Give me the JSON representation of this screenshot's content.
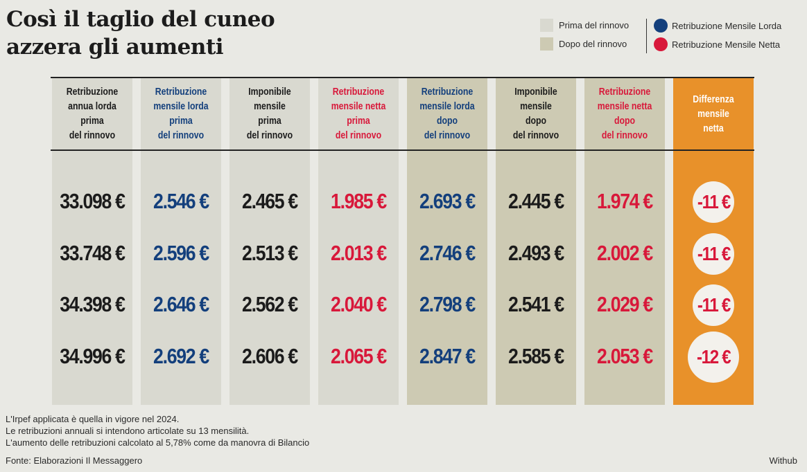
{
  "title": [
    "Così il taglio del cuneo",
    "azzera gli aumenti"
  ],
  "legend": {
    "prima": "Prima del rinnovo",
    "dopo": "Dopo del rinnovo",
    "lorda": "Retribuzione Mensile Lorda",
    "netta": "Retribuzione Mensile Netta",
    "colors": {
      "prima": "#d9d9d0",
      "dopo": "#cdcab3",
      "lorda": "#133f7c",
      "netta": "#d8183a",
      "diff": "#e8912a"
    }
  },
  "columns": [
    {
      "header": [
        "Retribuzione",
        "annua lorda",
        "prima",
        "del rinnovo"
      ],
      "values": [
        "33.098 €",
        "33.748 €",
        "34.398 €",
        "34.996 €"
      ]
    },
    {
      "header": [
        "Retribuzione",
        "mensile lorda",
        "prima",
        "del rinnovo"
      ],
      "values": [
        "2.546 €",
        "2.596 €",
        "2.646 €",
        "2.692 €"
      ]
    },
    {
      "header": [
        "Imponibile",
        "mensile",
        "prima",
        "del rinnovo"
      ],
      "values": [
        "2.465 €",
        "2.513 €",
        "2.562 €",
        "2.606 €"
      ]
    },
    {
      "header": [
        "Retribuzione",
        "mensile netta",
        "prima",
        "del rinnovo"
      ],
      "values": [
        "1.985 €",
        "2.013 €",
        "2.040 €",
        "2.065 €"
      ]
    },
    {
      "header": [
        "Retribuzione",
        "mensile lorda",
        "dopo",
        "del rinnovo"
      ],
      "values": [
        "2.693 €",
        "2.746 €",
        "2.798 €",
        "2.847 €"
      ]
    },
    {
      "header": [
        "Imponibile",
        "mensile",
        "dopo",
        "del rinnovo"
      ],
      "values": [
        "2.445 €",
        "2.493 €",
        "2.541 €",
        "2.585 €"
      ]
    },
    {
      "header": [
        "Retribuzione",
        "mensile netta",
        "dopo",
        "del rinnovo"
      ],
      "values": [
        "1.974 €",
        "2.002 €",
        "2.029 €",
        "2.053 €"
      ]
    },
    {
      "header": [
        "Differenza",
        "mensile",
        "netta"
      ],
      "values": [
        "-11 €",
        "-11 €",
        "-11 €",
        "-12 €"
      ]
    }
  ],
  "notes": [
    "L'Irpef applicata è quella in vigore nel 2024.",
    "Le retribuzioni annuali si intendono articolate su 13 mensilità.",
    "L'aumento delle retribuzioni calcolato al 5,78% come da manovra di Bilancio"
  ],
  "source": "Fonte: Elaborazioni Il Messaggero",
  "credit": "Withub"
}
